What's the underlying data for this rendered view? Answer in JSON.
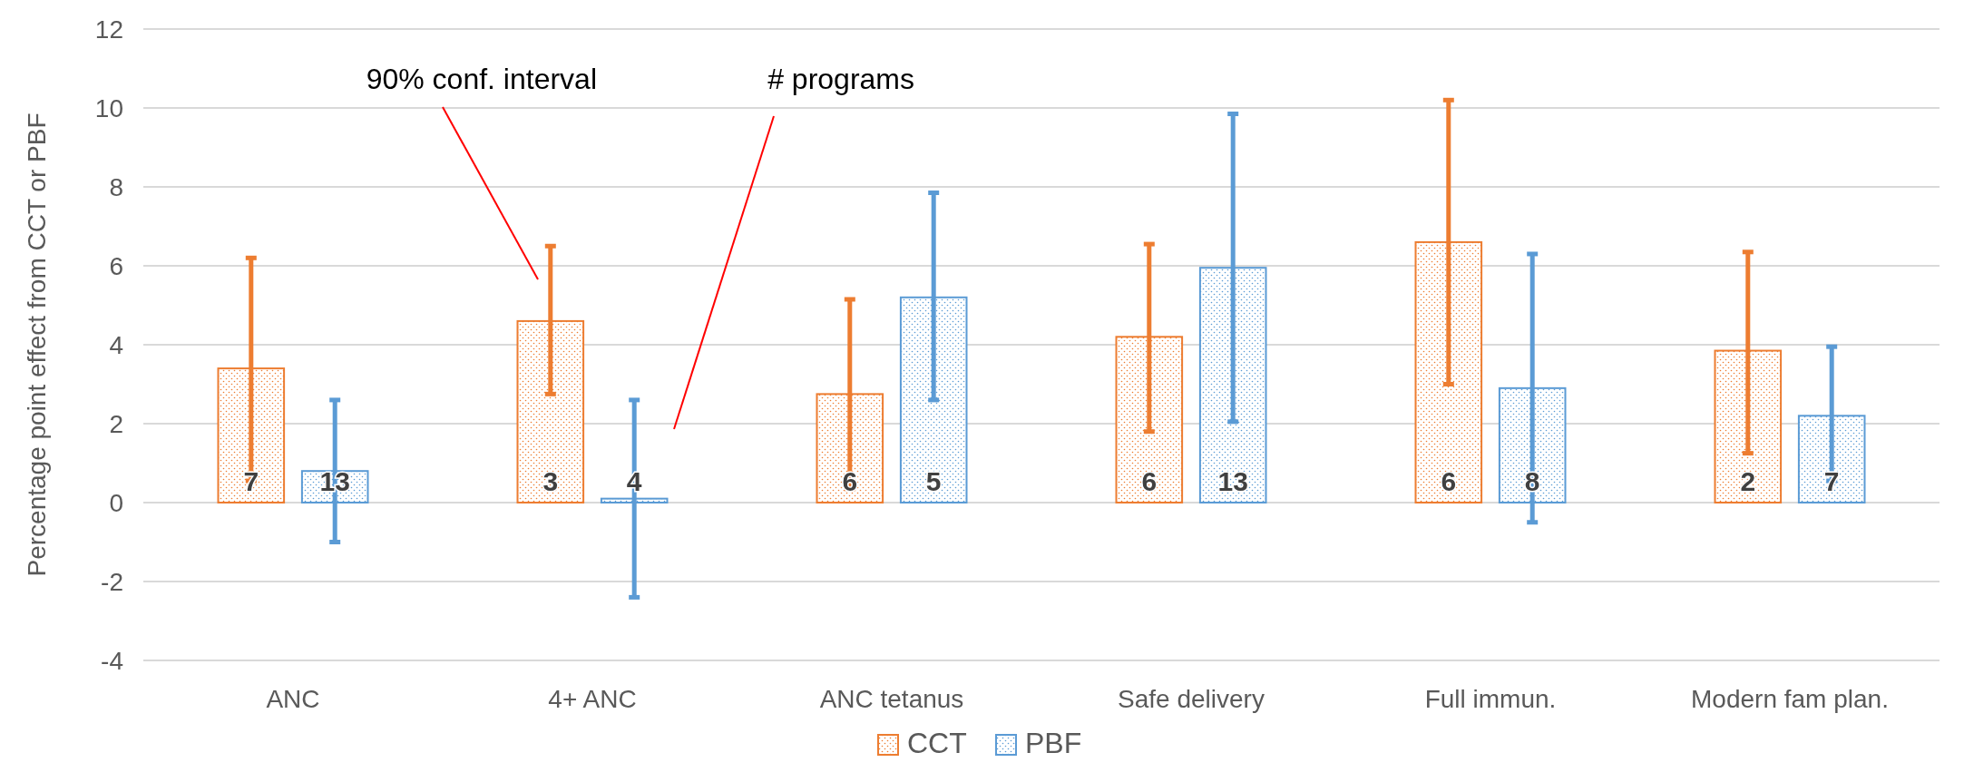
{
  "chart_data": {
    "type": "bar",
    "ylabel": "Percentage point effect from CCT or PBF",
    "categories": [
      "ANC",
      "4+ ANC",
      "ANC tetanus",
      "Safe delivery",
      "Full immun.",
      "Modern fam plan."
    ],
    "series": [
      {
        "name": "CCT",
        "color": "#ed7d31",
        "values": [
          3.4,
          4.6,
          2.75,
          4.2,
          6.6,
          3.85
        ],
        "errors": [
          [
            0.55,
            6.2
          ],
          [
            2.75,
            6.5
          ],
          [
            0.35,
            5.15
          ],
          [
            1.8,
            6.55
          ],
          [
            3.0,
            10.2
          ],
          [
            1.25,
            6.35
          ]
        ]
      },
      {
        "name": "PBF",
        "color": "#5b9bd5",
        "values": [
          0.8,
          0.1,
          5.2,
          5.95,
          2.9,
          2.2
        ],
        "errors": [
          [
            -1,
            2.6
          ],
          [
            -2.4,
            2.6
          ],
          [
            2.6,
            7.85
          ],
          [
            2.05,
            9.85
          ],
          [
            -0.5,
            6.3
          ],
          [
            0.55,
            3.95
          ]
        ]
      }
    ],
    "ylim": [
      -4,
      12
    ],
    "yticks": [
      -4,
      -2,
      0,
      2,
      4,
      6,
      8,
      10,
      12
    ],
    "grid": "y",
    "legend": "bottom",
    "annotations": [
      "90% conf. interval",
      "# programs",
      "7",
      "13",
      "3",
      "4",
      "6",
      "5",
      "6",
      "13",
      "6",
      "8",
      "2",
      "7"
    ]
  }
}
